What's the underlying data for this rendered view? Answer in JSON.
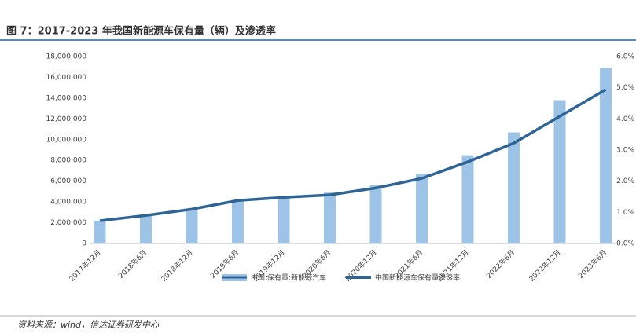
{
  "chart_data": {
    "type": "bar_line",
    "title": "图 7：2017-2023 年我国新能源车保有量（辆）及渗透率",
    "source": "资料来源：wind，信达证券研发中心",
    "categories": [
      "2017年12月",
      "2018年6月",
      "2018年12月",
      "2019年6月",
      "2019年12月",
      "2020年6月",
      "2020年12月",
      "2021年6月",
      "2021年12月",
      "2022年6月",
      "2022年12月",
      "2023年6月"
    ],
    "series": [
      {
        "name": "中国:保有量:新能源汽车",
        "type": "bar",
        "color": "#9dc3e6",
        "values": [
          2200000,
          2800000,
          3300000,
          4200000,
          4400000,
          4900000,
          5600000,
          6700000,
          8500000,
          10700000,
          13800000,
          16900000
        ]
      },
      {
        "name": "中国新能源车保有量渗透率",
        "type": "line",
        "axis": "y2",
        "color": "#2e6496",
        "values": [
          0.73,
          0.9,
          1.1,
          1.38,
          1.48,
          1.56,
          1.78,
          2.09,
          2.62,
          3.22,
          4.08,
          4.94
        ]
      }
    ],
    "ylim": [
      0,
      18000000
    ],
    "yticks": [
      {
        "value": 0,
        "label": "0"
      },
      {
        "value": 2000000,
        "label": "2,000,000"
      },
      {
        "value": 4000000,
        "label": "4,000,000"
      },
      {
        "value": 6000000,
        "label": "6,000,000"
      },
      {
        "value": 8000000,
        "label": "8,000,000"
      },
      {
        "value": 10000000,
        "label": "10,000,000"
      },
      {
        "value": 12000000,
        "label": "12,000,000"
      },
      {
        "value": 14000000,
        "label": "14,000,000"
      },
      {
        "value": 16000000,
        "label": "16,000,000"
      },
      {
        "value": 18000000,
        "label": "18,000,000"
      }
    ],
    "y2lim": [
      0,
      6
    ],
    "y2ticks": [
      {
        "value": 0,
        "label": "0.0%"
      },
      {
        "value": 1,
        "label": "1.0%"
      },
      {
        "value": 2,
        "label": "2.0%"
      },
      {
        "value": 3,
        "label": "3.0%"
      },
      {
        "value": 4,
        "label": "4.0%"
      },
      {
        "value": 5,
        "label": "5.0%"
      },
      {
        "value": 6,
        "label": "6.0%"
      }
    ]
  }
}
